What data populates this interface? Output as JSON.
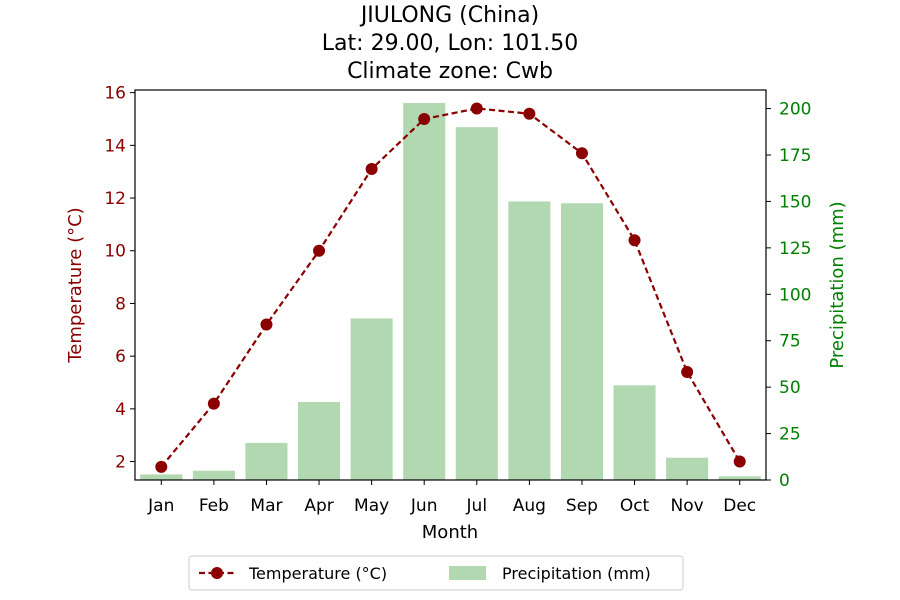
{
  "chart_data": {
    "type": "bar+line",
    "title_lines": [
      "JIULONG (China)",
      "Lat: 29.00, Lon: 101.50",
      "Climate zone: Cwb"
    ],
    "categories": [
      "Jan",
      "Feb",
      "Mar",
      "Apr",
      "May",
      "Jun",
      "Jul",
      "Aug",
      "Sep",
      "Oct",
      "Nov",
      "Dec"
    ],
    "xlabel": "Month",
    "series": [
      {
        "name": "Temperature (°C)",
        "axis": "left",
        "kind": "line",
        "color": "#8b0000",
        "values": [
          1.8,
          4.2,
          7.2,
          10.0,
          13.1,
          15.0,
          15.4,
          15.2,
          13.7,
          10.4,
          5.4,
          2.0
        ]
      },
      {
        "name": "Precipitation (mm)",
        "axis": "right",
        "kind": "bar",
        "color": "#b2d8b2",
        "values": [
          3,
          5,
          20,
          42,
          87,
          203,
          190,
          150,
          149,
          51,
          12,
          2
        ]
      }
    ],
    "y_left": {
      "label": "Temperature (°C)",
      "range": [
        1.3,
        16.1
      ],
      "ticks": [
        2,
        4,
        6,
        8,
        10,
        12,
        14,
        16
      ],
      "color": "#8b0000"
    },
    "y_right": {
      "label": "Precipitation (mm)",
      "range": [
        0,
        210
      ],
      "ticks": [
        0,
        25,
        50,
        75,
        100,
        125,
        150,
        175,
        200
      ],
      "color": "#008000"
    },
    "grid": false,
    "legend_position": "bottom-center"
  }
}
